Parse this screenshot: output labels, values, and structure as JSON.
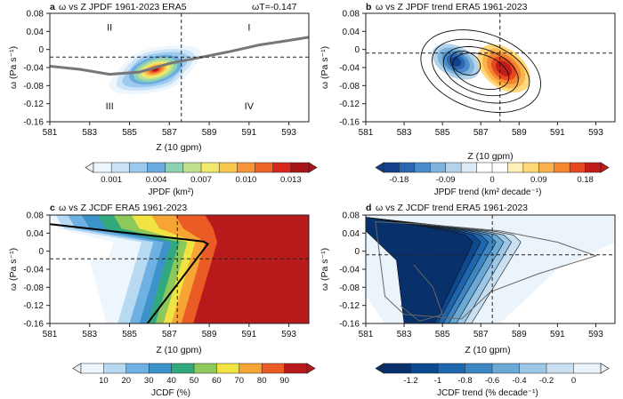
{
  "chart_data": [
    {
      "panel": "a",
      "title": "ω vs Z JPDF 1961-2023 ERA5",
      "extra": "ωT=-0.147",
      "type": "heatmap",
      "xlabel": "Z (10 gpm)",
      "ylabel": "ω (Pa s⁻¹)",
      "xlim": [
        581,
        594
      ],
      "ylim": [
        -0.16,
        0.08
      ],
      "xticks": [
        "581",
        "583",
        "585",
        "587",
        "589",
        "591",
        "593"
      ],
      "yticks": [
        "0.08",
        "0.04",
        "0",
        "-0.04",
        "-0.08",
        "-0.12",
        "-0.16"
      ],
      "reference_lines": {
        "x": 587.6,
        "y": -0.017
      },
      "quadrants": [
        "I",
        "II",
        "III",
        "IV"
      ],
      "blob": {
        "center": [
          586.3,
          -0.045
        ],
        "sx": 2.2,
        "sy": 0.05,
        "tilt": 0.018
      },
      "curve": {
        "x": [
          581,
          582.5,
          584,
          585.5,
          587,
          588.5,
          590,
          591.5,
          593,
          594
        ],
        "y": [
          -0.037,
          -0.044,
          -0.055,
          -0.05,
          -0.031,
          -0.018,
          -0.005,
          0.01,
          0.02,
          0.027
        ]
      },
      "colorbar": {
        "label": "JPDF (km²)",
        "ticks": [
          "0.001",
          "0.004",
          "0.007",
          "0.010",
          "0.013"
        ],
        "colors": [
          "#eef6fd",
          "#cbe3f7",
          "#9ccaee",
          "#6aacdf",
          "#8dd0b2",
          "#bfe18f",
          "#f1e96d",
          "#fbc84e",
          "#f79638",
          "#ef6328",
          "#d8261f",
          "#a81417"
        ]
      }
    },
    {
      "panel": "b",
      "title": "ω vs Z JPDF trend ERA5 1961-2023",
      "type": "heatmap",
      "xlabel": "Z (10 gpm)",
      "ylabel": "ω (Pa s⁻¹)",
      "xlim": [
        581,
        594
      ],
      "ylim": [
        -0.16,
        0.08
      ],
      "xticks": [
        "581",
        "583",
        "585",
        "587",
        "589",
        "591",
        "593"
      ],
      "yticks": [
        "0.08",
        "0.04",
        "0",
        "-0.04",
        "-0.08",
        "-0.12",
        "-0.16"
      ],
      "reference_lines": {
        "x": 588.0,
        "y": -0.008
      },
      "neg_center": [
        585.7,
        -0.027
      ],
      "pos_center": [
        588.2,
        -0.042
      ],
      "colorbar": {
        "label": "JPDF trend (km² decade⁻¹)",
        "ticks": [
          "-0.18",
          "-0.09",
          "0",
          "0.09",
          "0.18"
        ],
        "colors": [
          "#143f8c",
          "#2c66b0",
          "#4a8ccb",
          "#7db3dc",
          "#b3d3ea",
          "#ddebf6",
          "#ffffff",
          "#ffffff",
          "#fff0b5",
          "#fed879",
          "#fbb14c",
          "#f5852f",
          "#e6491f",
          "#bf1c1a"
        ]
      }
    },
    {
      "panel": "c",
      "title": "ω vs Z JCDF ERA5 1961-2023",
      "type": "heatmap",
      "xlabel": "Z (10 gpm)",
      "ylabel": "ω (Pa s⁻¹)",
      "xlim": [
        581,
        594
      ],
      "ylim": [
        -0.16,
        0.08
      ],
      "xticks": [
        "581",
        "583",
        "585",
        "587",
        "589",
        "591",
        "593"
      ],
      "yticks": [
        "0.08",
        "0.04",
        "0",
        "-0.04",
        "-0.08",
        "-0.12",
        "-0.16"
      ],
      "reference_lines": {
        "x": 587.4,
        "y": -0.017
      },
      "colorbar": {
        "label": "JCDF (%)",
        "ticks": [
          "10",
          "20",
          "30",
          "40",
          "50",
          "60",
          "70",
          "80",
          "90"
        ],
        "colors": [
          "#eef6fd",
          "#b7d9f1",
          "#6fb1e3",
          "#3b93c9",
          "#32a97d",
          "#8cc95a",
          "#f1e442",
          "#f6a434",
          "#ea5b25",
          "#b8191a"
        ]
      }
    },
    {
      "panel": "d",
      "title": "ω vs Z JCDF trend ERA5 1961-2023",
      "type": "heatmap",
      "xlabel": "Z (10 gpm)",
      "ylabel": "ω (Pa s⁻¹)",
      "xlim": [
        581,
        594
      ],
      "ylim": [
        -0.16,
        0.08
      ],
      "xticks": [
        "581",
        "583",
        "585",
        "587",
        "589",
        "591",
        "593"
      ],
      "yticks": [
        "0.08",
        "0.04",
        "0",
        "-0.04",
        "-0.08",
        "-0.12",
        "-0.16"
      ],
      "reference_lines": {
        "x": 587.6,
        "y": -0.008
      },
      "colorbar": {
        "label": "JCDF trend (% decade⁻¹)",
        "ticks": [
          "-1.2",
          "-1",
          "-0.8",
          "-0.6",
          "-0.4",
          "-0.2",
          "0"
        ],
        "colors": [
          "#08306b",
          "#0d4a92",
          "#1e66ae",
          "#3b86c3",
          "#6aa8d6",
          "#9cc7e6",
          "#c9e0f2",
          "#ecf4fb"
        ]
      }
    }
  ]
}
